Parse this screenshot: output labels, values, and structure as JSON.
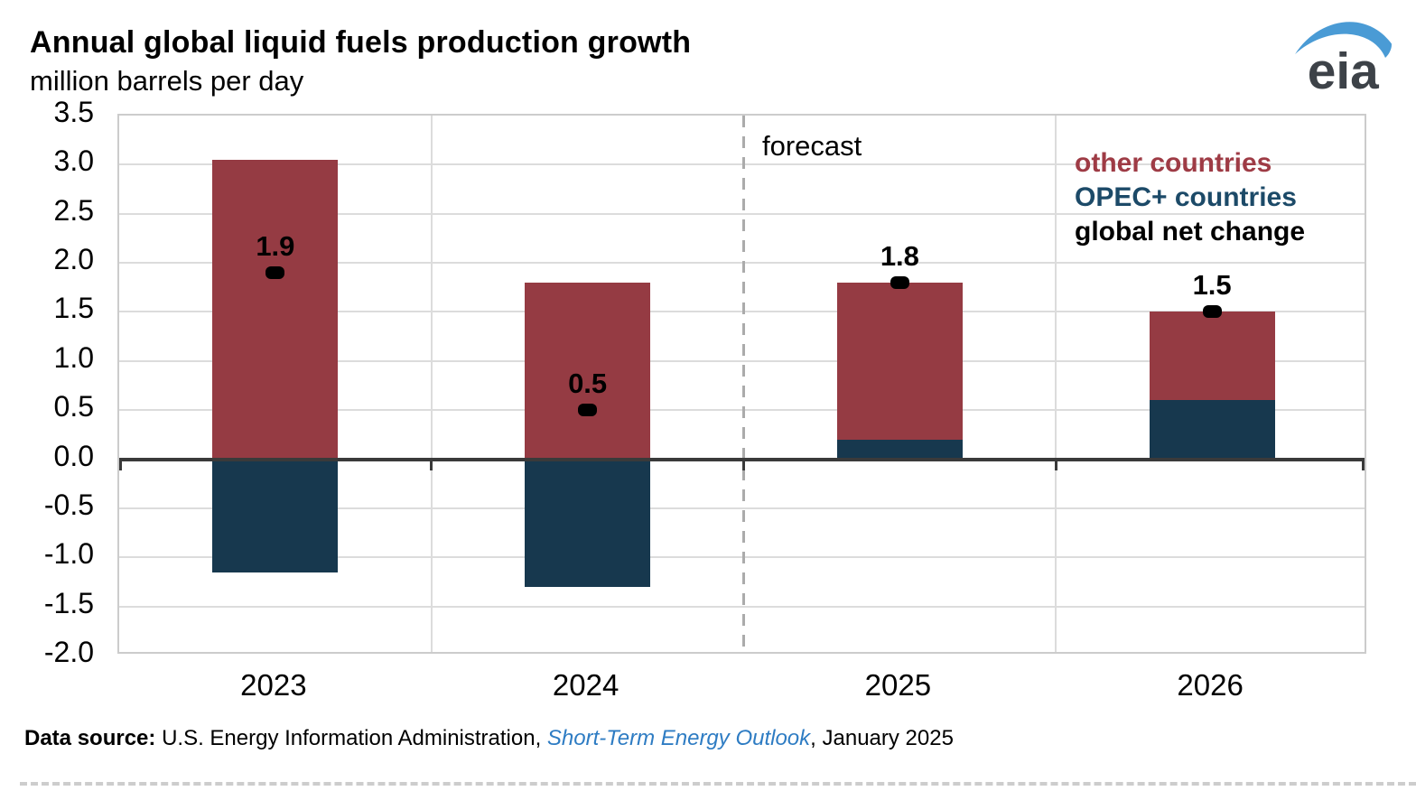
{
  "chart_data": {
    "type": "bar",
    "stacked": true,
    "title": "Annual global liquid fuels production growth",
    "subtitle": "million barrels per day",
    "categories": [
      "2023",
      "2024",
      "2025",
      "2026"
    ],
    "series": [
      {
        "name": "OPEC+ countries",
        "color": "#17384e",
        "values": [
          -1.15,
          -1.3,
          0.2,
          0.6
        ]
      },
      {
        "name": "other countries",
        "color": "#953b43",
        "values": [
          3.05,
          1.8,
          1.6,
          0.9
        ]
      }
    ],
    "net_change": {
      "name": "global net change",
      "color": "#000000",
      "values": [
        1.9,
        0.5,
        1.8,
        1.5
      ],
      "labels": [
        "1.9",
        "0.5",
        "1.8",
        "1.5"
      ]
    },
    "ylim": [
      -2.0,
      3.5
    ],
    "ytick_step": 0.5,
    "yticks": [
      "3.5",
      "3.0",
      "2.5",
      "2.0",
      "1.5",
      "1.0",
      "0.5",
      "0.0",
      "-0.5",
      "-1.0",
      "-1.5",
      "-2.0"
    ],
    "grid": true,
    "annotations": {
      "forecast_label": "forecast",
      "forecast_divider_after_category": "2024"
    },
    "legend": {
      "position": "top-right-inside",
      "items": [
        {
          "label": "other countries",
          "color": "#9e3b45"
        },
        {
          "label": "OPEC+ countries",
          "color": "#1c4a68"
        },
        {
          "label": "global net change",
          "color": "#000000"
        }
      ]
    }
  },
  "logo": {
    "text": "eia"
  },
  "footer": {
    "source_prefix": "Data source: ",
    "source_body": "U.S. Energy Information Administration, ",
    "source_link": "Short-Term Energy Outlook",
    "source_suffix": ", January 2025"
  }
}
